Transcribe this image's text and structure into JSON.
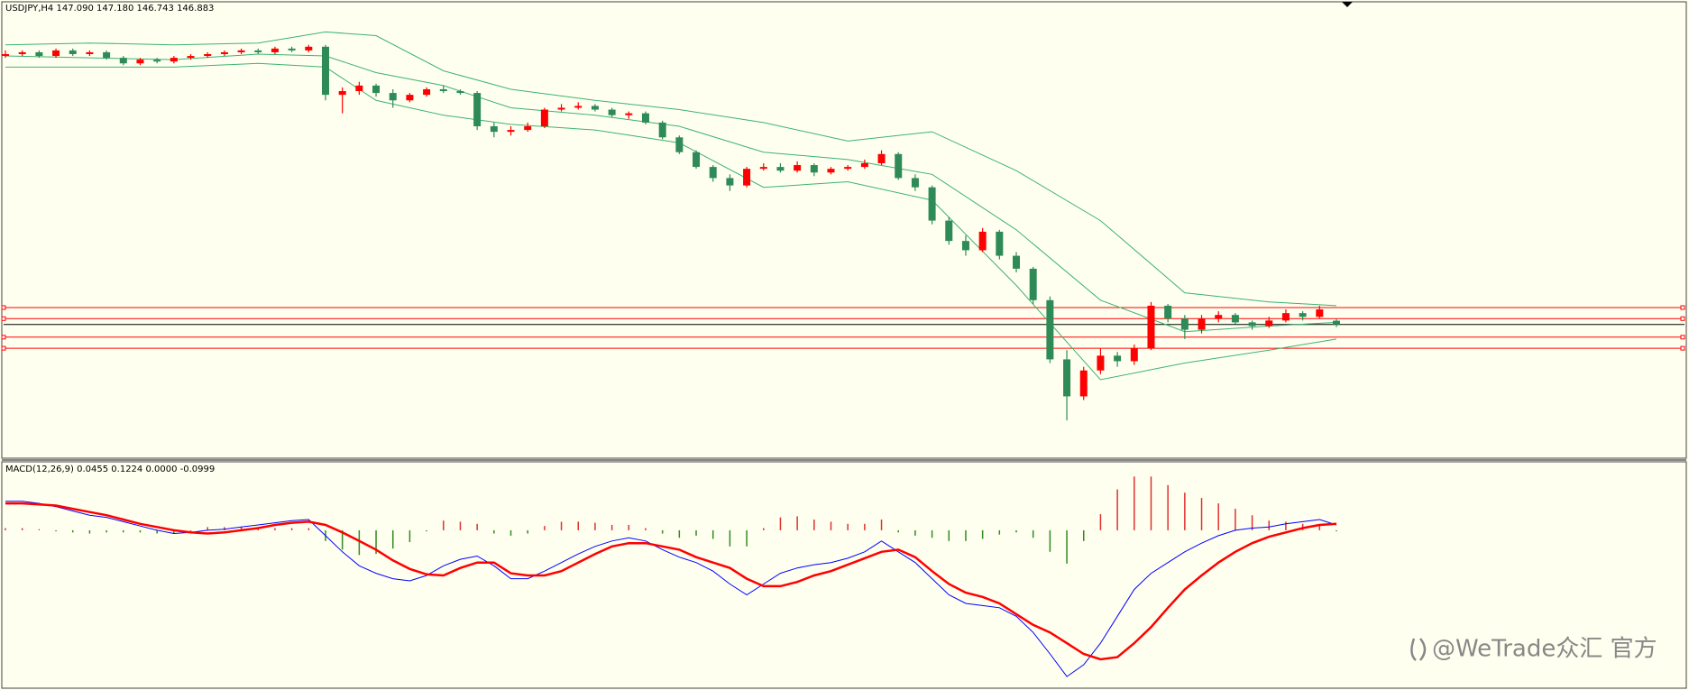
{
  "chart_data": [
    {
      "type": "candlestick",
      "title": "USDJPY,H4  147.090 147.180 146.743 146.883",
      "up_color": "#ff0000",
      "down_color": "#2e8b57",
      "ylim": [
        139.95,
        163.84
      ],
      "xlim": [
        0,
        79
      ],
      "candles": [
        [
          161.4,
          161.7,
          161.3,
          161.5
        ],
        [
          161.5,
          161.7,
          161.4,
          161.6
        ],
        [
          161.6,
          161.7,
          161.3,
          161.4
        ],
        [
          161.4,
          161.8,
          161.3,
          161.7
        ],
        [
          161.7,
          161.8,
          161.4,
          161.5
        ],
        [
          161.5,
          161.7,
          161.4,
          161.6
        ],
        [
          161.6,
          161.7,
          161.2,
          161.3
        ],
        [
          161.3,
          161.4,
          160.9,
          161.0
        ],
        [
          161.0,
          161.3,
          160.9,
          161.2
        ],
        [
          161.2,
          161.3,
          161.0,
          161.1
        ],
        [
          161.1,
          161.4,
          161.0,
          161.3
        ],
        [
          161.3,
          161.5,
          161.2,
          161.4
        ],
        [
          161.4,
          161.6,
          161.3,
          161.5
        ],
        [
          161.5,
          161.7,
          161.4,
          161.6
        ],
        [
          161.6,
          161.8,
          161.5,
          161.7
        ],
        [
          161.7,
          161.8,
          161.5,
          161.6
        ],
        [
          161.6,
          161.9,
          161.5,
          161.8
        ],
        [
          161.8,
          161.9,
          161.6,
          161.7
        ],
        [
          161.7,
          162.0,
          161.6,
          161.9
        ],
        [
          161.9,
          162.0,
          159.0,
          159.3
        ],
        [
          159.3,
          159.7,
          158.3,
          159.5
        ],
        [
          159.5,
          160.0,
          159.3,
          159.8
        ],
        [
          159.8,
          159.9,
          159.2,
          159.4
        ],
        [
          159.4,
          159.6,
          158.6,
          159.0
        ],
        [
          159.0,
          159.4,
          158.9,
          159.3
        ],
        [
          159.3,
          159.7,
          159.2,
          159.6
        ],
        [
          159.6,
          159.8,
          159.4,
          159.5
        ],
        [
          159.5,
          159.6,
          159.3,
          159.4
        ],
        [
          159.4,
          159.5,
          157.4,
          157.6
        ],
        [
          157.6,
          157.8,
          157.0,
          157.3
        ],
        [
          157.3,
          157.6,
          157.1,
          157.4
        ],
        [
          157.4,
          157.8,
          157.3,
          157.6
        ],
        [
          157.6,
          158.6,
          157.5,
          158.5
        ],
        [
          158.5,
          158.8,
          158.4,
          158.6
        ],
        [
          158.6,
          158.9,
          158.5,
          158.7
        ],
        [
          158.7,
          158.8,
          158.4,
          158.5
        ],
        [
          158.5,
          158.6,
          158.1,
          158.2
        ],
        [
          158.2,
          158.4,
          158.0,
          158.3
        ],
        [
          158.3,
          158.4,
          157.7,
          157.8
        ],
        [
          157.8,
          157.9,
          156.9,
          157.0
        ],
        [
          157.0,
          157.1,
          156.1,
          156.2
        ],
        [
          156.2,
          156.3,
          155.3,
          155.4
        ],
        [
          155.4,
          155.5,
          154.6,
          154.8
        ],
        [
          154.8,
          155.0,
          154.1,
          154.4
        ],
        [
          154.4,
          155.4,
          154.3,
          155.3
        ],
        [
          155.3,
          155.6,
          155.2,
          155.4
        ],
        [
          155.4,
          155.6,
          155.1,
          155.2
        ],
        [
          155.2,
          155.7,
          155.1,
          155.5
        ],
        [
          155.5,
          155.6,
          154.9,
          155.1
        ],
        [
          155.1,
          155.4,
          155.0,
          155.3
        ],
        [
          155.3,
          155.5,
          155.2,
          155.4
        ],
        [
          155.4,
          155.8,
          155.3,
          155.6
        ],
        [
          155.6,
          156.3,
          155.5,
          156.1
        ],
        [
          156.1,
          156.2,
          154.7,
          154.8
        ],
        [
          154.8,
          155.0,
          154.1,
          154.3
        ],
        [
          154.3,
          154.4,
          152.3,
          152.5
        ],
        [
          152.5,
          152.7,
          151.2,
          151.4
        ],
        [
          151.4,
          151.7,
          150.6,
          150.9
        ],
        [
          150.9,
          152.1,
          150.8,
          151.9
        ],
        [
          151.9,
          152.0,
          150.4,
          150.6
        ],
        [
          150.6,
          150.8,
          149.7,
          149.9
        ],
        [
          149.9,
          150.0,
          148.0,
          148.2
        ],
        [
          148.2,
          148.4,
          144.8,
          145.0
        ],
        [
          145.0,
          145.5,
          141.7,
          143.0
        ],
        [
          143.0,
          144.6,
          142.8,
          144.4
        ],
        [
          144.4,
          145.6,
          144.2,
          145.2
        ],
        [
          145.2,
          145.4,
          144.6,
          144.9
        ],
        [
          144.9,
          145.8,
          144.7,
          145.6
        ],
        [
          145.6,
          148.1,
          145.5,
          147.9
        ],
        [
          147.9,
          148.0,
          147.0,
          147.2
        ],
        [
          147.2,
          147.4,
          146.1,
          146.6
        ],
        [
          146.6,
          147.4,
          146.4,
          147.2
        ],
        [
          147.2,
          147.6,
          147.0,
          147.4
        ],
        [
          147.4,
          147.5,
          146.9,
          147.0
        ],
        [
          147.0,
          147.1,
          146.6,
          146.8
        ],
        [
          146.8,
          147.3,
          146.7,
          147.1
        ],
        [
          147.1,
          147.7,
          147.0,
          147.5
        ],
        [
          147.5,
          147.6,
          147.1,
          147.3
        ],
        [
          147.3,
          147.9,
          147.2,
          147.7
        ],
        [
          147.09,
          147.18,
          146.743,
          146.883
        ]
      ],
      "bands": [
        {
          "color": "#3cb371",
          "x": [
            0,
            5,
            10,
            15,
            19,
            22,
            26,
            30,
            35,
            40,
            45,
            50,
            55,
            60,
            65,
            70,
            75,
            79
          ],
          "values": [
            162.0,
            162.1,
            162.0,
            162.1,
            162.7,
            162.5,
            160.6,
            159.6,
            159.0,
            158.5,
            157.8,
            156.8,
            157.3,
            155.2,
            152.5,
            148.6,
            148.1,
            147.9
          ]
        },
        {
          "color": "#3cb371",
          "x": [
            0,
            5,
            10,
            15,
            19,
            22,
            26,
            30,
            35,
            40,
            45,
            50,
            55,
            60,
            65,
            70,
            75,
            79
          ],
          "values": [
            161.4,
            161.3,
            161.2,
            161.5,
            161.4,
            160.5,
            159.8,
            158.6,
            158.2,
            157.6,
            156.2,
            155.8,
            155.0,
            152.0,
            148.2,
            146.5,
            146.8,
            147.0
          ]
        },
        {
          "color": "#3cb371",
          "x": [
            0,
            5,
            10,
            15,
            19,
            22,
            26,
            30,
            35,
            40,
            45,
            50,
            55,
            60,
            65,
            70,
            75,
            79
          ],
          "values": [
            160.8,
            160.8,
            160.8,
            161.0,
            160.8,
            159.0,
            158.2,
            157.7,
            157.4,
            156.7,
            154.3,
            154.6,
            153.6,
            149.0,
            143.9,
            144.8,
            145.5,
            146.1
          ]
        }
      ],
      "levels": [
        147.8,
        147.2,
        146.2,
        145.6
      ],
      "level_color": "#ff0000",
      "price_line_color": "#000000"
    },
    {
      "type": "macd",
      "title": "MACD(12,26,9) 0.0455 0.1224 0.0000 -0.0999",
      "ylim": [
        -1.46,
        0.62
      ],
      "xlim": [
        0,
        79
      ],
      "histogram": {
        "up_color": "#e03030",
        "down_color": "#2e8b22",
        "values": [
          0.02,
          0.02,
          0.01,
          -0.01,
          -0.02,
          -0.03,
          -0.02,
          -0.02,
          -0.02,
          -0.03,
          -0.03,
          0.0,
          0.03,
          0.03,
          0.03,
          0.03,
          0.02,
          0.02,
          0.02,
          -0.1,
          -0.18,
          -0.23,
          -0.22,
          -0.17,
          -0.11,
          -0.01,
          0.09,
          0.08,
          0.06,
          -0.03,
          -0.05,
          -0.03,
          0.04,
          0.08,
          0.08,
          0.07,
          0.05,
          0.05,
          0.02,
          -0.03,
          -0.07,
          -0.05,
          -0.08,
          -0.15,
          -0.15,
          0.02,
          0.12,
          0.13,
          0.1,
          0.08,
          0.06,
          0.06,
          0.1,
          -0.02,
          -0.05,
          -0.07,
          -0.1,
          -0.1,
          -0.08,
          -0.04,
          -0.02,
          -0.07,
          -0.2,
          -0.31,
          -0.1,
          0.15,
          0.38,
          0.5,
          0.5,
          0.42,
          0.35,
          0.3,
          0.25,
          0.2,
          0.14,
          0.09,
          0.08,
          0.06,
          0.05,
          -0.01
        ]
      },
      "series": [
        {
          "color": "#0000ff",
          "width": 1,
          "values": [
            0.27,
            0.27,
            0.25,
            0.22,
            0.18,
            0.14,
            0.12,
            0.08,
            0.04,
            0.0,
            -0.03,
            -0.02,
            0.0,
            0.01,
            0.03,
            0.05,
            0.07,
            0.09,
            0.1,
            -0.05,
            -0.2,
            -0.33,
            -0.4,
            -0.45,
            -0.47,
            -0.42,
            -0.33,
            -0.27,
            -0.24,
            -0.33,
            -0.45,
            -0.45,
            -0.38,
            -0.3,
            -0.22,
            -0.15,
            -0.1,
            -0.07,
            -0.1,
            -0.18,
            -0.25,
            -0.3,
            -0.38,
            -0.5,
            -0.6,
            -0.5,
            -0.4,
            -0.35,
            -0.32,
            -0.3,
            -0.26,
            -0.2,
            -0.1,
            -0.2,
            -0.3,
            -0.45,
            -0.6,
            -0.68,
            -0.7,
            -0.72,
            -0.8,
            -0.95,
            -1.15,
            -1.36,
            -1.25,
            -1.05,
            -0.8,
            -0.55,
            -0.4,
            -0.3,
            -0.2,
            -0.12,
            -0.05,
            0.0,
            0.02,
            0.03,
            0.06,
            0.08,
            0.1,
            0.05
          ]
        },
        {
          "color": "#ff0000",
          "width": 2.5,
          "values": [
            0.25,
            0.25,
            0.24,
            0.23,
            0.2,
            0.17,
            0.14,
            0.1,
            0.06,
            0.03,
            0.0,
            -0.02,
            -0.03,
            -0.02,
            0.0,
            0.02,
            0.05,
            0.07,
            0.08,
            0.05,
            -0.02,
            -0.1,
            -0.18,
            -0.28,
            -0.36,
            -0.41,
            -0.42,
            -0.35,
            -0.3,
            -0.3,
            -0.4,
            -0.42,
            -0.42,
            -0.38,
            -0.3,
            -0.22,
            -0.15,
            -0.12,
            -0.12,
            -0.15,
            -0.18,
            -0.25,
            -0.3,
            -0.35,
            -0.45,
            -0.52,
            -0.52,
            -0.48,
            -0.42,
            -0.38,
            -0.32,
            -0.26,
            -0.2,
            -0.18,
            -0.25,
            -0.38,
            -0.5,
            -0.58,
            -0.62,
            -0.68,
            -0.78,
            -0.88,
            -0.95,
            -1.05,
            -1.15,
            -1.2,
            -1.18,
            -1.05,
            -0.9,
            -0.72,
            -0.55,
            -0.42,
            -0.3,
            -0.2,
            -0.12,
            -0.06,
            -0.02,
            0.02,
            0.05,
            0.06
          ]
        }
      ]
    }
  ],
  "watermark": "@WeTrade众汇 官方"
}
